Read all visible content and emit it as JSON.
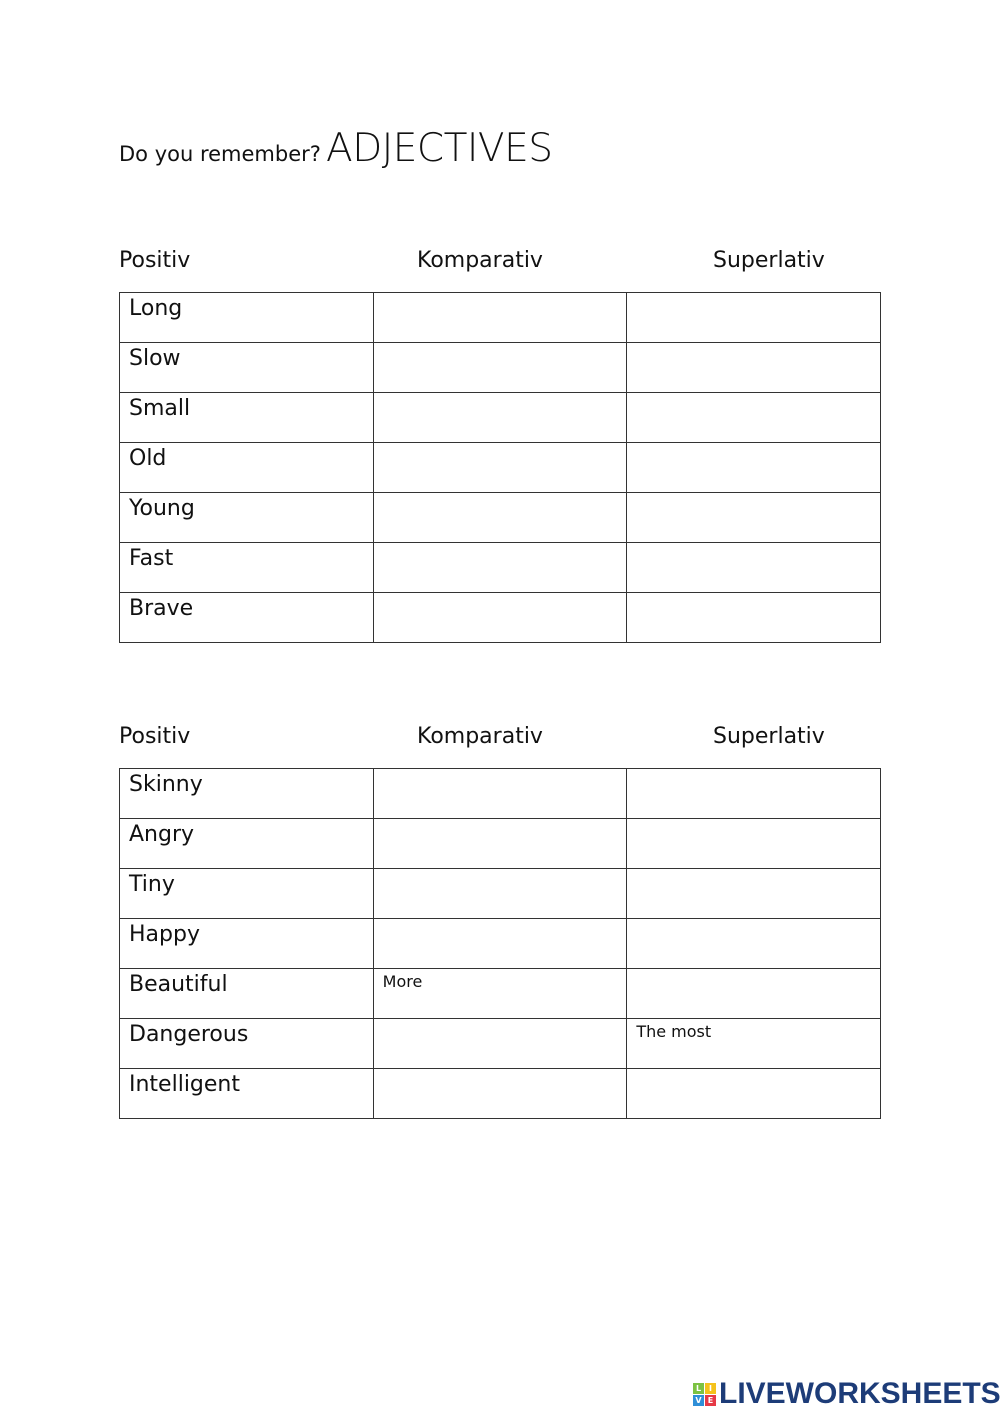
{
  "title": {
    "prefix": "Do you remember?",
    "main": "ADJECTIVES"
  },
  "headers": [
    "Positiv",
    "Komparativ",
    "Superlativ"
  ],
  "tables": [
    {
      "rows": [
        [
          "Long",
          "",
          ""
        ],
        [
          "Slow",
          "",
          ""
        ],
        [
          "Small",
          "",
          ""
        ],
        [
          "Old",
          "",
          ""
        ],
        [
          "Young",
          "",
          ""
        ],
        [
          "Fast",
          "",
          ""
        ],
        [
          "Brave",
          "",
          ""
        ]
      ]
    },
    {
      "rows": [
        [
          "Skinny",
          "",
          ""
        ],
        [
          "Angry",
          "",
          ""
        ],
        [
          "Tiny",
          "",
          ""
        ],
        [
          "Happy",
          "",
          ""
        ],
        [
          "Beautiful",
          "More",
          ""
        ],
        [
          "Dangerous",
          "",
          "The most"
        ],
        [
          "Intelligent",
          "",
          ""
        ]
      ]
    }
  ],
  "logo": {
    "text": "LIVEWORKSHEETS",
    "letters": [
      "L",
      "I",
      "V",
      "E"
    ],
    "colors": [
      "#7cc242",
      "#f5c21b",
      "#2f8fd8",
      "#e63946"
    ],
    "text_color": "#1d3c78"
  }
}
